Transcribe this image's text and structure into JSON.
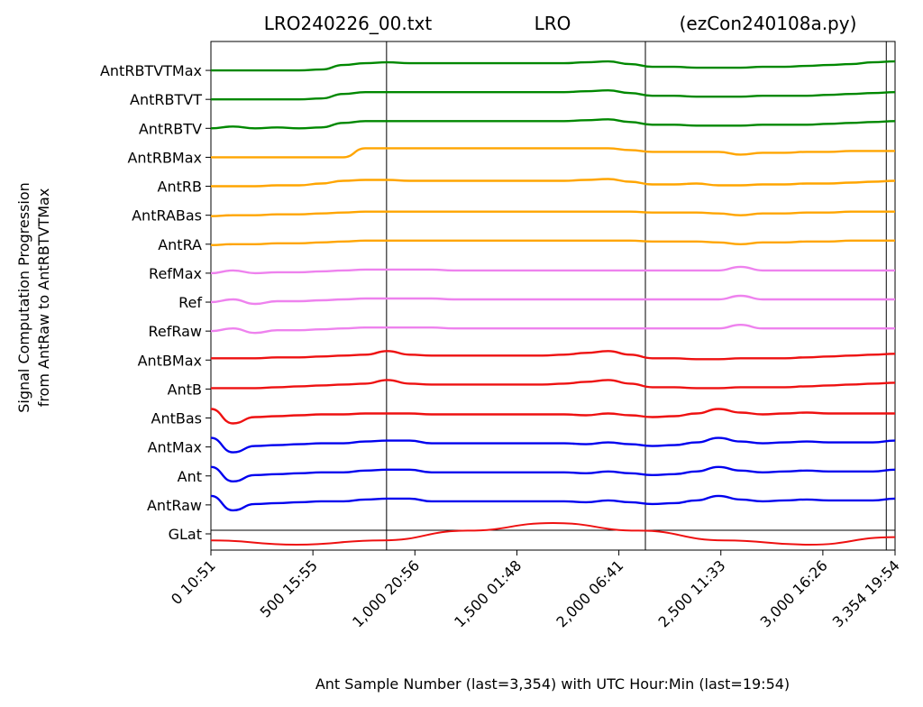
{
  "chart_data": {
    "type": "line",
    "title_parts": {
      "left": "LRO240226_00.txt",
      "center": "LRO",
      "right": "(ezCon240108a.py)"
    },
    "xlabel": "Ant Sample Number (last=3,354) with UTC Hour:Min (last=19:54)",
    "ylabel_lines": [
      "Signal Computation Progression",
      "from AntRaw to AntRBTVTMax"
    ],
    "xlim": [
      0,
      3354
    ],
    "x_ticks": [
      {
        "value": 0,
        "label": "0  10:51"
      },
      {
        "value": 500,
        "label": "500  15:55"
      },
      {
        "value": 1000,
        "label": "1,000  20:56"
      },
      {
        "value": 1500,
        "label": "1,500  01:48"
      },
      {
        "value": 2000,
        "label": "2,000  06:41"
      },
      {
        "value": 2500,
        "label": "2,500  11:33"
      },
      {
        "value": 3000,
        "label": "3,000  16:26"
      },
      {
        "value": 3354,
        "label": "3,354  19:54"
      }
    ],
    "vertical_markers": [
      861,
      2130,
      3311
    ],
    "series": [
      {
        "name": "GLat",
        "color": "#ee1111",
        "values": [
          -0.6,
          -1.0,
          -0.6,
          0.3,
          1.0,
          0.3,
          -0.6,
          -1.0,
          -0.3
        ]
      },
      {
        "name": "AntRaw",
        "color": "#0000ee",
        "values": [
          1.0,
          -0.6,
          0.1,
          0.2,
          0.3,
          0.4,
          0.4,
          0.6,
          0.7,
          0.7,
          0.4,
          0.4,
          0.4,
          0.4,
          0.4,
          0.4,
          0.4,
          0.3,
          0.5,
          0.3,
          0.1,
          0.2,
          0.5,
          1.0,
          0.6,
          0.4,
          0.5,
          0.6,
          0.5,
          0.5,
          0.5,
          0.7
        ]
      },
      {
        "name": "Ant",
        "color": "#0000ee",
        "values": [
          1.0,
          -0.6,
          0.1,
          0.2,
          0.3,
          0.4,
          0.4,
          0.6,
          0.7,
          0.7,
          0.4,
          0.4,
          0.4,
          0.4,
          0.4,
          0.4,
          0.4,
          0.3,
          0.5,
          0.3,
          0.1,
          0.2,
          0.5,
          1.0,
          0.6,
          0.4,
          0.5,
          0.6,
          0.5,
          0.5,
          0.5,
          0.7
        ]
      },
      {
        "name": "AntMax",
        "color": "#0000ee",
        "values": [
          1.0,
          -0.6,
          0.1,
          0.2,
          0.3,
          0.4,
          0.4,
          0.6,
          0.7,
          0.7,
          0.4,
          0.4,
          0.4,
          0.4,
          0.4,
          0.4,
          0.4,
          0.3,
          0.5,
          0.3,
          0.1,
          0.2,
          0.5,
          1.0,
          0.6,
          0.4,
          0.5,
          0.6,
          0.5,
          0.5,
          0.5,
          0.7
        ]
      },
      {
        "name": "AntBas",
        "color": "#ee1111",
        "values": [
          1.0,
          -0.6,
          0.1,
          0.2,
          0.3,
          0.4,
          0.4,
          0.5,
          0.5,
          0.5,
          0.4,
          0.4,
          0.4,
          0.4,
          0.4,
          0.4,
          0.4,
          0.3,
          0.5,
          0.3,
          0.1,
          0.2,
          0.5,
          1.0,
          0.6,
          0.4,
          0.5,
          0.6,
          0.5,
          0.5,
          0.5,
          0.5
        ]
      },
      {
        "name": "AntB",
        "color": "#ee1111",
        "values": [
          0.1,
          0.1,
          0.1,
          0.2,
          0.3,
          0.4,
          0.5,
          0.6,
          1.0,
          0.6,
          0.5,
          0.5,
          0.5,
          0.5,
          0.5,
          0.5,
          0.6,
          0.8,
          1.0,
          0.6,
          0.2,
          0.2,
          0.1,
          0.1,
          0.2,
          0.2,
          0.2,
          0.3,
          0.4,
          0.5,
          0.6,
          0.7
        ]
      },
      {
        "name": "AntBMax",
        "color": "#ee1111",
        "values": [
          0.2,
          0.2,
          0.2,
          0.3,
          0.3,
          0.4,
          0.5,
          0.6,
          1.0,
          0.6,
          0.5,
          0.5,
          0.5,
          0.5,
          0.5,
          0.5,
          0.6,
          0.8,
          1.0,
          0.6,
          0.2,
          0.2,
          0.1,
          0.1,
          0.2,
          0.2,
          0.2,
          0.3,
          0.4,
          0.5,
          0.6,
          0.7
        ]
      },
      {
        "name": "RefRaw",
        "color": "#ee82ee",
        "values": [
          0.0,
          0.3,
          -0.2,
          0.1,
          0.1,
          0.2,
          0.3,
          0.4,
          0.4,
          0.4,
          0.4,
          0.3,
          0.3,
          0.3,
          0.3,
          0.3,
          0.3,
          0.3,
          0.3,
          0.3,
          0.3,
          0.3,
          0.3,
          0.3,
          0.7,
          0.3,
          0.3,
          0.3,
          0.3,
          0.3,
          0.3,
          0.3
        ]
      },
      {
        "name": "Ref",
        "color": "#ee82ee",
        "values": [
          0.0,
          0.3,
          -0.2,
          0.1,
          0.1,
          0.2,
          0.3,
          0.4,
          0.4,
          0.4,
          0.4,
          0.3,
          0.3,
          0.3,
          0.3,
          0.3,
          0.3,
          0.3,
          0.3,
          0.3,
          0.3,
          0.3,
          0.3,
          0.3,
          0.7,
          0.3,
          0.3,
          0.3,
          0.3,
          0.3,
          0.3,
          0.3
        ]
      },
      {
        "name": "RefMax",
        "color": "#ee82ee",
        "values": [
          0.0,
          0.3,
          0.0,
          0.1,
          0.1,
          0.2,
          0.3,
          0.4,
          0.4,
          0.4,
          0.4,
          0.3,
          0.3,
          0.3,
          0.3,
          0.3,
          0.3,
          0.3,
          0.3,
          0.3,
          0.3,
          0.3,
          0.3,
          0.3,
          0.7,
          0.3,
          0.3,
          0.3,
          0.3,
          0.3,
          0.3,
          0.3
        ]
      },
      {
        "name": "AntRA",
        "color": "#ffa500",
        "values": [
          -0.1,
          0.0,
          0.0,
          0.1,
          0.1,
          0.2,
          0.3,
          0.4,
          0.4,
          0.4,
          0.4,
          0.4,
          0.4,
          0.4,
          0.4,
          0.4,
          0.4,
          0.4,
          0.4,
          0.4,
          0.3,
          0.3,
          0.3,
          0.2,
          0.0,
          0.2,
          0.2,
          0.3,
          0.3,
          0.4,
          0.4,
          0.4
        ]
      },
      {
        "name": "AntRABas",
        "color": "#ffa500",
        "values": [
          -0.1,
          0.0,
          0.0,
          0.1,
          0.1,
          0.2,
          0.3,
          0.4,
          0.4,
          0.4,
          0.4,
          0.4,
          0.4,
          0.4,
          0.4,
          0.4,
          0.4,
          0.4,
          0.4,
          0.4,
          0.3,
          0.3,
          0.3,
          0.2,
          0.0,
          0.2,
          0.2,
          0.3,
          0.3,
          0.4,
          0.4,
          0.4
        ]
      },
      {
        "name": "AntRB",
        "color": "#ffa500",
        "values": [
          0.0,
          0.0,
          0.0,
          0.1,
          0.1,
          0.3,
          0.6,
          0.7,
          0.7,
          0.6,
          0.6,
          0.6,
          0.6,
          0.6,
          0.6,
          0.6,
          0.6,
          0.7,
          0.8,
          0.5,
          0.2,
          0.2,
          0.3,
          0.1,
          0.1,
          0.2,
          0.2,
          0.3,
          0.3,
          0.4,
          0.5,
          0.6
        ]
      },
      {
        "name": "AntRBMax",
        "color": "#ffa500",
        "values": [
          0.0,
          0.0,
          0.0,
          0.0,
          0.0,
          0.0,
          0.0,
          1.0,
          1.0,
          1.0,
          1.0,
          1.0,
          1.0,
          1.0,
          1.0,
          1.0,
          1.0,
          1.0,
          1.0,
          0.8,
          0.6,
          0.6,
          0.6,
          0.6,
          0.3,
          0.5,
          0.5,
          0.6,
          0.6,
          0.7,
          0.7,
          0.7
        ]
      },
      {
        "name": "AntRBTV",
        "color": "#008800",
        "values": [
          0.0,
          0.2,
          0.0,
          0.1,
          0.0,
          0.1,
          0.6,
          0.8,
          0.8,
          0.8,
          0.8,
          0.8,
          0.8,
          0.8,
          0.8,
          0.8,
          0.8,
          0.9,
          1.0,
          0.7,
          0.4,
          0.4,
          0.3,
          0.3,
          0.3,
          0.4,
          0.4,
          0.4,
          0.5,
          0.6,
          0.7,
          0.8
        ]
      },
      {
        "name": "AntRBTVT",
        "color": "#008800",
        "values": [
          0.0,
          0.0,
          0.0,
          0.0,
          0.0,
          0.1,
          0.6,
          0.8,
          0.8,
          0.8,
          0.8,
          0.8,
          0.8,
          0.8,
          0.8,
          0.8,
          0.8,
          0.9,
          1.0,
          0.7,
          0.4,
          0.4,
          0.3,
          0.3,
          0.3,
          0.4,
          0.4,
          0.4,
          0.5,
          0.6,
          0.7,
          0.8
        ]
      },
      {
        "name": "AntRBTVTMax",
        "color": "#008800",
        "values": [
          0.0,
          0.0,
          0.0,
          0.0,
          0.0,
          0.1,
          0.6,
          0.8,
          0.9,
          0.8,
          0.8,
          0.8,
          0.8,
          0.8,
          0.8,
          0.8,
          0.8,
          0.9,
          1.0,
          0.7,
          0.4,
          0.4,
          0.3,
          0.3,
          0.3,
          0.4,
          0.4,
          0.5,
          0.6,
          0.7,
          0.9,
          1.0
        ]
      }
    ]
  }
}
